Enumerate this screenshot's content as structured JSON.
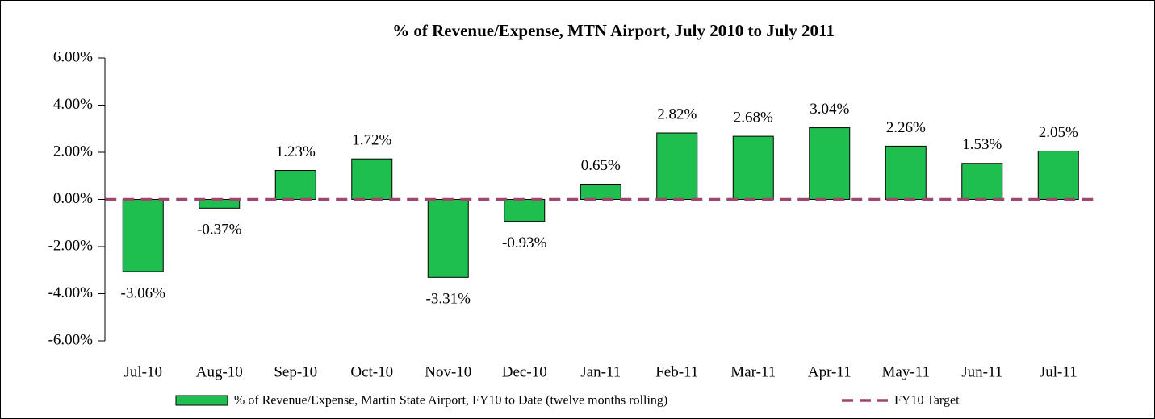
{
  "chart_data": {
    "type": "bar",
    "title": "% of Revenue/Expense, MTN Airport, July 2010 to July 2011",
    "categories": [
      "Jul-10",
      "Aug-10",
      "Sep-10",
      "Oct-10",
      "Nov-10",
      "Dec-10",
      "Jan-11",
      "Feb-11",
      "Mar-11",
      "Apr-11",
      "May-11",
      "Jun-11",
      "Jul-11"
    ],
    "series": [
      {
        "name": "% of Revenue/Expense, Martin State Airport, FY10 to Date (twelve months rolling)",
        "type": "bar",
        "color": "#1fbf4f",
        "values": [
          -3.06,
          -0.37,
          1.23,
          1.72,
          -3.31,
          -0.93,
          0.65,
          2.82,
          2.68,
          3.04,
          2.26,
          1.53,
          2.05
        ],
        "value_labels": [
          "-3.06%",
          "-0.37%",
          "1.23%",
          "1.72%",
          "-3.31%",
          "-0.93%",
          "0.65%",
          "2.82%",
          "2.68%",
          "3.04%",
          "2.26%",
          "1.53%",
          "2.05%"
        ]
      },
      {
        "name": "FY10 Target",
        "type": "line",
        "color": "#a0456e",
        "values": [
          0,
          0,
          0,
          0,
          0,
          0,
          0,
          0,
          0,
          0,
          0,
          0,
          0
        ]
      }
    ],
    "ylim": [
      -6,
      6
    ],
    "yticks": [
      {
        "value": -6,
        "label": "-6.00%"
      },
      {
        "value": -4,
        "label": "-4.00%"
      },
      {
        "value": -2,
        "label": "-2.00%"
      },
      {
        "value": 0,
        "label": "0.00%"
      },
      {
        "value": 2,
        "label": "2.00%"
      },
      {
        "value": 4,
        "label": "4.00%"
      },
      {
        "value": 6,
        "label": "6.00%"
      }
    ]
  }
}
